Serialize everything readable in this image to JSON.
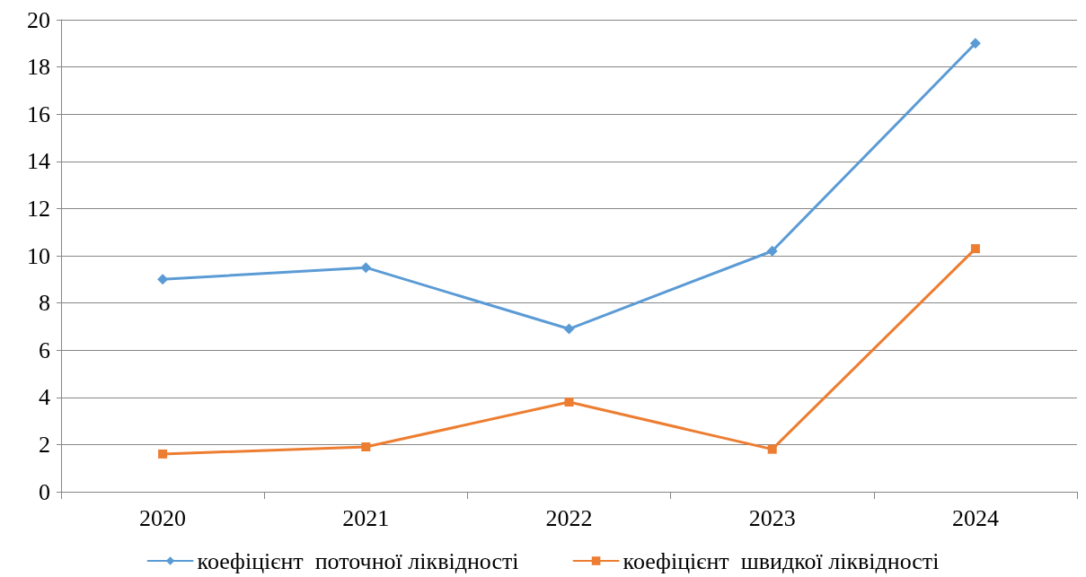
{
  "chart_data": {
    "type": "line",
    "categories": [
      "2020",
      "2021",
      "2022",
      "2023",
      "2024"
    ],
    "series": [
      {
        "name": "коефіцієнт  поточної ліквідності",
        "color": "#5b9bd5",
        "marker": "diamond",
        "values": [
          9.0,
          9.5,
          6.9,
          10.2,
          19.0
        ]
      },
      {
        "name": "коефіцієнт  швидкої ліквідності",
        "color": "#ed7d31",
        "marker": "square",
        "values": [
          1.6,
          1.9,
          3.8,
          1.8,
          10.3
        ]
      }
    ],
    "ylim": [
      0,
      20
    ],
    "yticks": [
      0,
      2,
      4,
      6,
      8,
      10,
      12,
      14,
      16,
      18,
      20
    ],
    "grid": "y",
    "legend": "bottom",
    "line_style": "solid"
  }
}
